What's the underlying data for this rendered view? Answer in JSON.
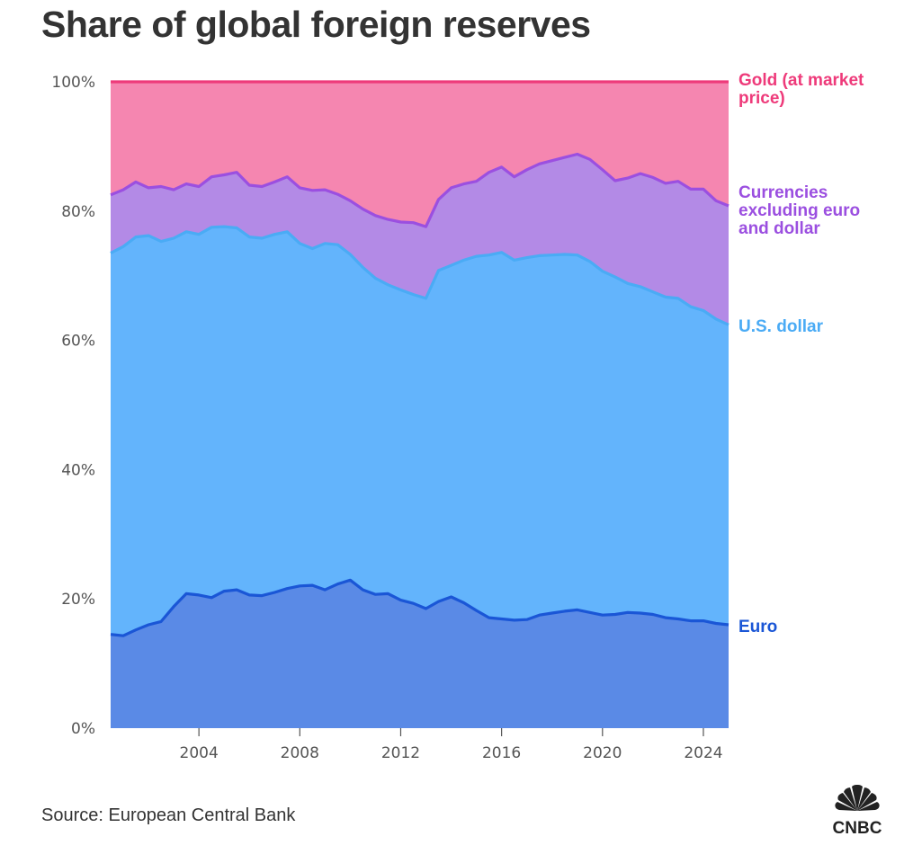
{
  "chart_data": {
    "type": "area",
    "stacked": true,
    "title": "Share of global foreign reserves",
    "source": "Source: European Central Bank",
    "logo_text": "CNBC",
    "xlim": [
      2000.5,
      2025.0
    ],
    "ylim": [
      0,
      100
    ],
    "y_ticks": [
      0,
      20,
      40,
      60,
      80,
      100
    ],
    "y_tick_labels": [
      "0%",
      "20%",
      "40%",
      "60%",
      "80%",
      "100%"
    ],
    "x_ticks": [
      2004,
      2008,
      2012,
      2016,
      2020,
      2024
    ],
    "x_tick_labels": [
      "2004",
      "2008",
      "2012",
      "2016",
      "2020",
      "2024"
    ],
    "grid": false,
    "legend": "inline labels at right end of each series",
    "series": [
      {
        "name": "Euro",
        "color": "#1a56d6",
        "fill": "#5a8ae6",
        "x": [
          2000.5,
          2001.0,
          2001.5,
          2002.0,
          2002.5,
          2003.0,
          2003.5,
          2004.0,
          2004.5,
          2005.0,
          2005.5,
          2006.0,
          2006.5,
          2007.0,
          2007.5,
          2008.0,
          2008.5,
          2009.0,
          2009.5,
          2010.0,
          2010.5,
          2011.0,
          2011.5,
          2012.0,
          2012.5,
          2013.0,
          2013.5,
          2014.0,
          2014.5,
          2015.0,
          2015.5,
          2016.0,
          2016.5,
          2017.0,
          2017.5,
          2018.0,
          2018.5,
          2019.0,
          2019.5,
          2020.0,
          2020.5,
          2021.0,
          2021.5,
          2022.0,
          2022.5,
          2023.0,
          2023.5,
          2024.0,
          2024.5,
          2025.0
        ],
        "cumulative_top": [
          14.5,
          14.3,
          15.2,
          16.0,
          16.5,
          18.8,
          20.8,
          20.6,
          20.2,
          21.2,
          21.4,
          20.6,
          20.5,
          21.0,
          21.6,
          22.0,
          22.1,
          21.4,
          22.3,
          22.9,
          21.4,
          20.7,
          20.8,
          19.8,
          19.3,
          18.5,
          19.6,
          20.3,
          19.4,
          18.2,
          17.1,
          16.9,
          16.7,
          16.8,
          17.5,
          17.8,
          18.1,
          18.3,
          17.9,
          17.5,
          17.6,
          17.9,
          17.8,
          17.6,
          17.1,
          16.9,
          16.6,
          16.6,
          16.2,
          16.0
        ]
      },
      {
        "name": "U.S. dollar",
        "color": "#4aabf5",
        "fill": "#63b4fc",
        "x": [
          2000.5,
          2001.0,
          2001.5,
          2002.0,
          2002.5,
          2003.0,
          2003.5,
          2004.0,
          2004.5,
          2005.0,
          2005.5,
          2006.0,
          2006.5,
          2007.0,
          2007.5,
          2008.0,
          2008.5,
          2009.0,
          2009.5,
          2010.0,
          2010.5,
          2011.0,
          2011.5,
          2012.0,
          2012.5,
          2013.0,
          2013.5,
          2014.0,
          2014.5,
          2015.0,
          2015.5,
          2016.0,
          2016.5,
          2017.0,
          2017.5,
          2018.0,
          2018.5,
          2019.0,
          2019.5,
          2020.0,
          2020.5,
          2021.0,
          2021.5,
          2022.0,
          2022.5,
          2023.0,
          2023.5,
          2024.0,
          2024.5,
          2025.0
        ],
        "cumulative_top": [
          73.5,
          74.5,
          76.0,
          76.2,
          75.3,
          75.8,
          76.8,
          76.4,
          77.5,
          77.6,
          77.4,
          76.0,
          75.8,
          76.4,
          76.8,
          75.0,
          74.2,
          75.0,
          74.8,
          73.3,
          71.3,
          69.6,
          68.6,
          67.8,
          67.1,
          66.5,
          70.8,
          71.6,
          72.4,
          73.0,
          73.2,
          73.6,
          72.4,
          72.8,
          73.1,
          73.2,
          73.3,
          73.2,
          72.2,
          70.7,
          69.8,
          68.8,
          68.3,
          67.5,
          66.7,
          66.5,
          65.2,
          64.6,
          63.3,
          62.4
        ]
      },
      {
        "name": "Currencies excluding euro and dollar",
        "color": "#9b4fe0",
        "fill": "#b38ae6",
        "x": [
          2000.5,
          2001.0,
          2001.5,
          2002.0,
          2002.5,
          2003.0,
          2003.5,
          2004.0,
          2004.5,
          2005.0,
          2005.5,
          2006.0,
          2006.5,
          2007.0,
          2007.5,
          2008.0,
          2008.5,
          2009.0,
          2009.5,
          2010.0,
          2010.5,
          2011.0,
          2011.5,
          2012.0,
          2012.5,
          2013.0,
          2013.5,
          2014.0,
          2014.5,
          2015.0,
          2015.5,
          2016.0,
          2016.5,
          2017.0,
          2017.5,
          2018.0,
          2018.5,
          2019.0,
          2019.5,
          2020.0,
          2020.5,
          2021.0,
          2021.5,
          2022.0,
          2022.5,
          2023.0,
          2023.5,
          2024.0,
          2024.5,
          2025.0
        ],
        "cumulative_top": [
          82.5,
          83.3,
          84.5,
          83.6,
          83.8,
          83.3,
          84.2,
          83.8,
          85.3,
          85.6,
          86.0,
          84.0,
          83.8,
          84.5,
          85.3,
          83.6,
          83.2,
          83.3,
          82.6,
          81.6,
          80.3,
          79.3,
          78.7,
          78.3,
          78.2,
          77.6,
          81.8,
          83.6,
          84.2,
          84.6,
          86.0,
          86.8,
          85.3,
          86.4,
          87.3,
          87.8,
          88.3,
          88.8,
          88.0,
          86.4,
          84.7,
          85.1,
          85.8,
          85.2,
          84.3,
          84.6,
          83.4,
          83.4,
          81.6,
          80.8
        ]
      },
      {
        "name": "Gold (at market price)",
        "color": "#ee3a7a",
        "fill": "#f586b0",
        "x": [
          2000.5,
          2025.0
        ],
        "cumulative_top": [
          100,
          100
        ]
      }
    ],
    "label_lines": {
      "Euro": [
        "Euro"
      ],
      "U.S. dollar": [
        "U.S. dollar"
      ],
      "Currencies excluding euro and dollar": [
        "Currencies",
        "excluding euro",
        "and dollar"
      ],
      "Gold (at market price)": [
        "Gold (at market",
        "price)"
      ]
    }
  }
}
